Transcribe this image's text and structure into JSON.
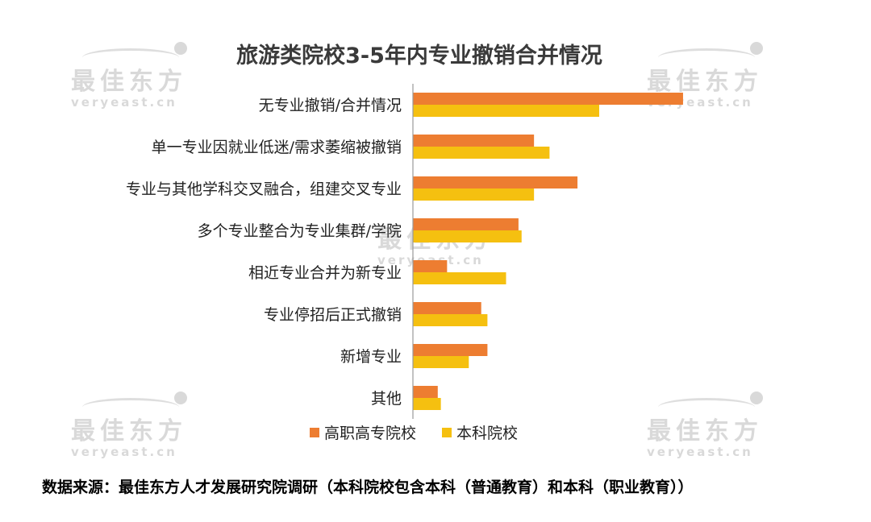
{
  "watermark": {
    "brand": "最佳东方",
    "site": "veryeast.cn"
  },
  "chart_data": {
    "type": "bar",
    "orientation": "horizontal",
    "title": "旅游类院校3-5年内专业撤销合并情况",
    "categories": [
      "无专业撤销/合并情况",
      "单一专业因就业低迷/需求萎缩被撤销",
      "专业与其他学科交叉融合，组建交叉专业",
      "多个专业整合为专业集群/学院",
      "相近专业合并为新专业",
      "专业停招后正式撤销",
      "新增专业",
      "其他"
    ],
    "series": [
      {
        "name": "高职高专院校",
        "color": "#ed7d31",
        "values": [
          43.5,
          19.5,
          26.5,
          17.0,
          5.5,
          11.0,
          12.0,
          4.0
        ]
      },
      {
        "name": "本科院校",
        "color": "#f5c010",
        "values": [
          30.0,
          22.0,
          19.5,
          17.5,
          15.0,
          12.0,
          9.0,
          4.5
        ]
      }
    ],
    "xlim": [
      0,
      50
    ],
    "xlabel": "",
    "ylabel": "",
    "grid": false,
    "legend": "bottom"
  },
  "source": "数据来源：最佳东方人才发展研究院调研（本科院校包含本科（普通教育）和本科（职业教育））"
}
